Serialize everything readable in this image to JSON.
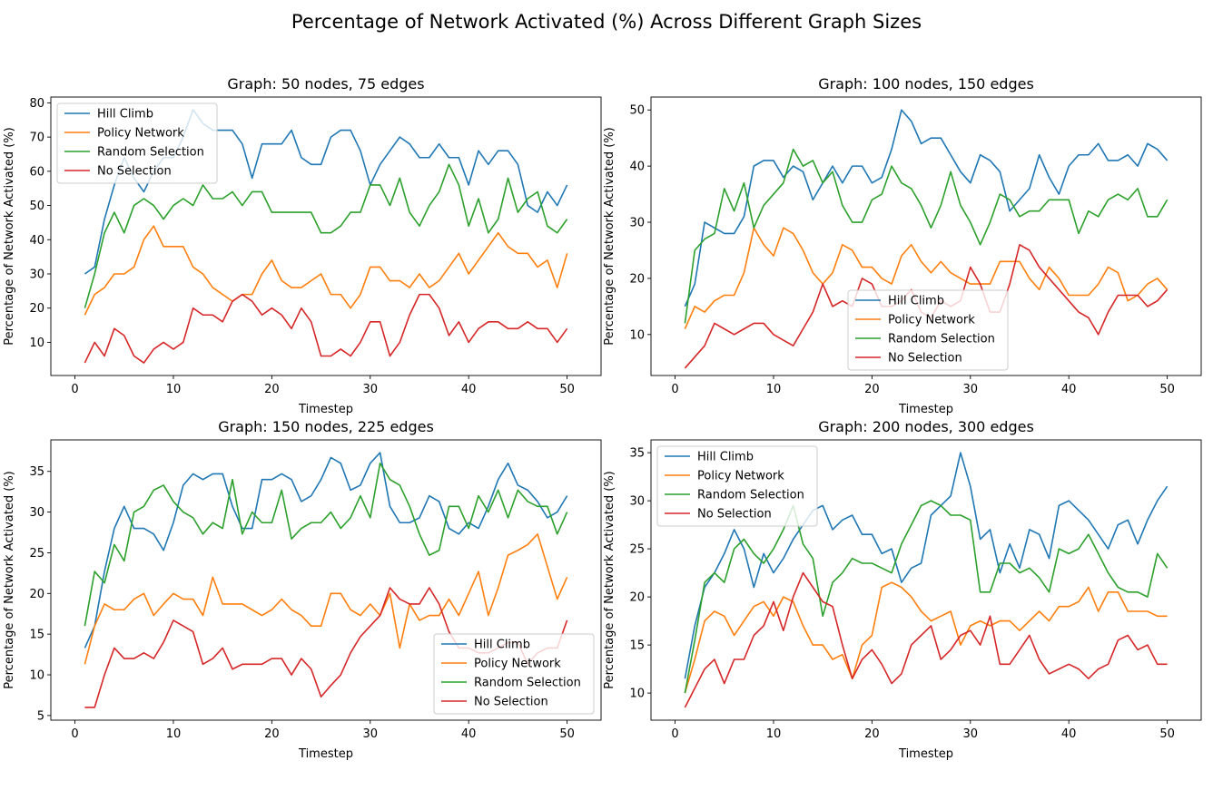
{
  "figure": {
    "title": "Percentage of Network Activated (%) Across Different Graph Sizes"
  },
  "chart_data": [
    {
      "type": "line",
      "title": "Graph: 50 nodes, 75 edges",
      "xlabel": "Timestep",
      "ylabel": "Percentage of Network Activated (%)",
      "xlim": [
        -2.45,
        53.45
      ],
      "ylim": [
        0.3,
        81.7
      ],
      "xticks": [
        0,
        10,
        20,
        30,
        40,
        50
      ],
      "yticks": [
        10,
        20,
        30,
        40,
        50,
        60,
        70,
        80
      ],
      "legend": "upper left",
      "x": [
        1,
        2,
        3,
        4,
        5,
        6,
        7,
        8,
        9,
        10,
        11,
        12,
        13,
        14,
        15,
        16,
        17,
        18,
        19,
        20,
        21,
        22,
        23,
        24,
        25,
        26,
        27,
        28,
        29,
        30,
        31,
        32,
        33,
        34,
        35,
        36,
        37,
        38,
        39,
        40,
        41,
        42,
        43,
        44,
        45,
        46,
        47,
        48,
        49,
        50
      ],
      "series": [
        {
          "name": "Hill Climb",
          "color": "#1f77b4",
          "values": [
            30,
            32,
            46,
            56,
            64,
            58,
            54,
            60,
            64,
            64,
            70,
            78,
            74,
            72,
            72,
            72,
            68,
            58,
            68,
            68,
            68,
            72,
            64,
            62,
            62,
            70,
            72,
            72,
            66,
            56,
            62,
            66,
            70,
            68,
            64,
            64,
            68,
            64,
            64,
            56,
            66,
            62,
            66,
            66,
            62,
            50,
            48,
            54,
            50,
            56
          ]
        },
        {
          "name": "Policy Network",
          "color": "#ff7f0e",
          "values": [
            18,
            24,
            26,
            30,
            30,
            32,
            40,
            44,
            38,
            38,
            38,
            32,
            30,
            26,
            24,
            22,
            24,
            24,
            30,
            34,
            28,
            26,
            26,
            28,
            30,
            24,
            24,
            20,
            24,
            32,
            32,
            28,
            28,
            26,
            30,
            26,
            28,
            32,
            36,
            30,
            34,
            38,
            42,
            38,
            36,
            36,
            32,
            34,
            26,
            36
          ]
        },
        {
          "name": "Random Selection",
          "color": "#2ca02c",
          "values": [
            20,
            30,
            42,
            48,
            42,
            50,
            52,
            50,
            46,
            50,
            52,
            50,
            56,
            52,
            52,
            54,
            50,
            54,
            54,
            48,
            48,
            48,
            48,
            48,
            42,
            42,
            44,
            48,
            48,
            56,
            56,
            50,
            58,
            48,
            44,
            50,
            54,
            62,
            56,
            44,
            52,
            42,
            46,
            58,
            48,
            52,
            54,
            44,
            42,
            46
          ]
        },
        {
          "name": "No Selection",
          "color": "#d62728",
          "values": [
            4,
            10,
            6,
            14,
            12,
            6,
            4,
            8,
            10,
            8,
            10,
            20,
            18,
            18,
            16,
            22,
            24,
            22,
            18,
            20,
            18,
            14,
            20,
            16,
            6,
            6,
            8,
            6,
            10,
            16,
            16,
            6,
            10,
            18,
            24,
            24,
            20,
            12,
            16,
            10,
            14,
            16,
            16,
            14,
            14,
            16,
            14,
            14,
            10,
            14
          ]
        }
      ]
    },
    {
      "type": "line",
      "title": "Graph: 100 nodes, 150 edges",
      "xlabel": "Timestep",
      "ylabel": "Percentage of Network Activated (%)",
      "xlim": [
        -2.45,
        53.45
      ],
      "ylim": [
        2.7,
        52.3
      ],
      "xticks": [
        0,
        10,
        20,
        30,
        40,
        50
      ],
      "yticks": [
        10,
        20,
        30,
        40,
        50
      ],
      "legend": "lower center",
      "x": [
        1,
        2,
        3,
        4,
        5,
        6,
        7,
        8,
        9,
        10,
        11,
        12,
        13,
        14,
        15,
        16,
        17,
        18,
        19,
        20,
        21,
        22,
        23,
        24,
        25,
        26,
        27,
        28,
        29,
        30,
        31,
        32,
        33,
        34,
        35,
        36,
        37,
        38,
        39,
        40,
        41,
        42,
        43,
        44,
        45,
        46,
        47,
        48,
        49,
        50
      ],
      "series": [
        {
          "name": "Hill Climb",
          "color": "#1f77b4",
          "values": [
            15,
            19,
            30,
            29,
            28,
            28,
            31,
            40,
            41,
            41,
            38,
            40,
            39,
            34,
            37,
            40,
            37,
            40,
            40,
            37,
            38,
            43,
            50,
            48,
            44,
            45,
            45,
            42,
            39,
            37,
            42,
            41,
            39,
            32,
            34,
            36,
            42,
            38,
            35,
            40,
            42,
            42,
            44,
            41,
            41,
            42,
            40,
            44,
            43,
            41
          ]
        },
        {
          "name": "Policy Network",
          "color": "#ff7f0e",
          "values": [
            11,
            15,
            14,
            16,
            17,
            17,
            21,
            29,
            26,
            24,
            29,
            28,
            25,
            21,
            19,
            21,
            26,
            25,
            22,
            22,
            20,
            19,
            24,
            26,
            23,
            21,
            23,
            21,
            20,
            19,
            19,
            19,
            23,
            23,
            23,
            20,
            18,
            22,
            20,
            17,
            17,
            17,
            19,
            22,
            21,
            16,
            17,
            19,
            20,
            18
          ]
        },
        {
          "name": "Random Selection",
          "color": "#2ca02c",
          "values": [
            12,
            25,
            27,
            28,
            36,
            32,
            37,
            29,
            33,
            35,
            37,
            43,
            40,
            41,
            37,
            39,
            33,
            30,
            30,
            34,
            35,
            40,
            37,
            36,
            33,
            29,
            33,
            39,
            33,
            30,
            26,
            30,
            35,
            34,
            31,
            32,
            32,
            34,
            34,
            34,
            28,
            32,
            31,
            34,
            35,
            34,
            36,
            31,
            31,
            34
          ]
        },
        {
          "name": "No Selection",
          "color": "#d62728",
          "values": [
            4,
            6,
            8,
            12,
            11,
            10,
            11,
            12,
            12,
            10,
            9,
            8,
            11,
            14,
            19,
            15,
            16,
            15,
            20,
            19,
            15,
            15,
            16,
            18,
            14,
            13,
            16,
            15,
            16,
            22,
            19,
            14,
            14,
            19,
            26,
            25,
            22,
            20,
            18,
            16,
            14,
            13,
            10,
            14,
            17,
            17,
            17,
            15,
            16,
            18
          ]
        }
      ]
    },
    {
      "type": "line",
      "title": "Graph: 150 nodes, 225 edges",
      "xlabel": "Timestep",
      "ylabel": "Percentage of Network Activated (%)",
      "xlim": [
        -2.45,
        53.45
      ],
      "ylim": [
        4.43,
        38.87
      ],
      "xticks": [
        0,
        10,
        20,
        30,
        40,
        50
      ],
      "yticks": [
        5,
        10,
        15,
        20,
        25,
        30,
        35
      ],
      "legend": "lower right",
      "x": [
        1,
        2,
        3,
        4,
        5,
        6,
        7,
        8,
        9,
        10,
        11,
        12,
        13,
        14,
        15,
        16,
        17,
        18,
        19,
        20,
        21,
        22,
        23,
        24,
        25,
        26,
        27,
        28,
        29,
        30,
        31,
        32,
        33,
        34,
        35,
        36,
        37,
        38,
        39,
        40,
        41,
        42,
        43,
        44,
        45,
        46,
        47,
        48,
        49,
        50
      ],
      "series": [
        {
          "name": "Hill Climb",
          "color": "#1f77b4",
          "values": [
            13.3,
            16,
            22.7,
            28,
            30.7,
            28,
            28,
            27.3,
            25.3,
            28.7,
            33.3,
            34.7,
            34,
            34.7,
            34.7,
            30.7,
            28,
            28,
            34,
            34,
            34.7,
            34,
            31.3,
            32,
            34,
            36.7,
            36,
            32.7,
            33.3,
            36,
            37.3,
            30.7,
            28.7,
            28.7,
            29.3,
            32,
            31.3,
            28,
            27.3,
            28.7,
            28,
            30.7,
            34,
            36,
            33.3,
            32.7,
            31.3,
            29.3,
            30,
            32
          ]
        },
        {
          "name": "Policy Network",
          "color": "#ff7f0e",
          "values": [
            11.3,
            16,
            18.7,
            18,
            18,
            19.3,
            20,
            17.3,
            18.7,
            20,
            19.3,
            19.3,
            17.3,
            22,
            18.7,
            18.7,
            18.7,
            18,
            17.3,
            18,
            19.3,
            18,
            17.3,
            16,
            16,
            20,
            20,
            18,
            17.3,
            18.7,
            17.3,
            20,
            13.3,
            18.7,
            16.7,
            17.3,
            17.3,
            19.3,
            17.3,
            20,
            22.7,
            17.3,
            20.7,
            24.7,
            25.3,
            26,
            27.3,
            23.3,
            19.3,
            22
          ]
        },
        {
          "name": "Random Selection",
          "color": "#2ca02c",
          "values": [
            16,
            22.7,
            21.3,
            26,
            24,
            30,
            30.7,
            32.7,
            33.3,
            31.3,
            30,
            29.3,
            27.3,
            28.7,
            28,
            34,
            27.3,
            30,
            28.7,
            28.7,
            32.7,
            26.7,
            28,
            28.7,
            28.7,
            30,
            28,
            29.3,
            32,
            29.3,
            36,
            34,
            33.3,
            30.7,
            27.3,
            24.7,
            25.3,
            30.7,
            30.7,
            28,
            32,
            30,
            32.7,
            29.3,
            32.7,
            31.3,
            30.7,
            30.7,
            27.3,
            30
          ]
        },
        {
          "name": "No Selection",
          "color": "#d62728",
          "values": [
            6,
            6,
            10,
            13.3,
            12,
            12,
            12.7,
            12,
            14,
            16.7,
            16,
            15.3,
            11.3,
            12,
            13.3,
            10.7,
            11.3,
            11.3,
            11.3,
            12,
            12,
            10,
            12,
            10.7,
            7.3,
            8.7,
            10,
            12.7,
            14.7,
            16,
            17.3,
            20.7,
            19.3,
            18.7,
            18.7,
            20.7,
            18.7,
            15.3,
            13.3,
            13.3,
            12.7,
            12.7,
            13.3,
            14,
            14,
            11.3,
            12.7,
            13.3,
            13.3,
            16.7
          ]
        }
      ]
    },
    {
      "type": "line",
      "title": "Graph: 200 nodes, 300 edges",
      "xlabel": "Timestep",
      "ylabel": "Percentage of Network Activated (%)",
      "xlim": [
        -2.45,
        53.45
      ],
      "ylim": [
        7.18,
        36.33
      ],
      "xticks": [
        0,
        10,
        20,
        30,
        40,
        50
      ],
      "yticks": [
        10,
        15,
        20,
        25,
        30,
        35
      ],
      "legend": "upper left",
      "x": [
        1,
        2,
        3,
        4,
        5,
        6,
        7,
        8,
        9,
        10,
        11,
        12,
        13,
        14,
        15,
        16,
        17,
        18,
        19,
        20,
        21,
        22,
        23,
        24,
        25,
        26,
        27,
        28,
        29,
        30,
        31,
        32,
        33,
        34,
        35,
        36,
        37,
        38,
        39,
        40,
        41,
        42,
        43,
        44,
        45,
        46,
        47,
        48,
        49,
        50
      ],
      "series": [
        {
          "name": "Hill Climb",
          "color": "#1f77b4",
          "values": [
            11.5,
            17,
            21,
            22.5,
            24.5,
            27,
            25,
            21,
            24.5,
            22.5,
            24,
            26,
            27.5,
            29,
            29.5,
            27,
            28,
            28.5,
            26.5,
            26.5,
            24.5,
            25,
            21.5,
            23,
            23.5,
            28.5,
            29.5,
            30.5,
            35,
            31.5,
            26,
            27,
            22.5,
            25.5,
            23,
            27,
            26.5,
            24,
            29.5,
            30,
            29,
            28,
            26.5,
            25,
            27.5,
            28,
            25.5,
            28,
            30,
            31.5
          ]
        },
        {
          "name": "Policy Network",
          "color": "#ff7f0e",
          "values": [
            10,
            13.5,
            17.5,
            18.5,
            18,
            16,
            17.5,
            19,
            19.5,
            18,
            20,
            19.5,
            17,
            15,
            15,
            13.5,
            14,
            11.5,
            15,
            16,
            21,
            21.5,
            21,
            20,
            18.5,
            17.5,
            18,
            18.5,
            15,
            17,
            17.5,
            17,
            17.5,
            17.5,
            16.5,
            17.5,
            18.5,
            17.5,
            19,
            19,
            19.5,
            21,
            18.5,
            20.5,
            20.5,
            18.5,
            18.5,
            18.5,
            18,
            18
          ]
        },
        {
          "name": "Random Selection",
          "color": "#2ca02c",
          "values": [
            10,
            15.5,
            21.5,
            22.5,
            21.5,
            25,
            26,
            24.5,
            23.5,
            25,
            27,
            29.5,
            25.5,
            24,
            18,
            21.5,
            22.5,
            24,
            23.5,
            23.5,
            23,
            22.5,
            25.5,
            27.5,
            29.5,
            30,
            29.5,
            28.5,
            28.5,
            28,
            20.5,
            20.5,
            23.5,
            23.5,
            22.5,
            23,
            22,
            20.5,
            25,
            24.5,
            25,
            26.5,
            24.5,
            22.5,
            21,
            20.5,
            20.5,
            20,
            24.5,
            23
          ]
        },
        {
          "name": "No Selection",
          "color": "#d62728",
          "values": [
            8.5,
            10.5,
            12.5,
            13.5,
            11,
            13.5,
            13.5,
            16,
            17,
            19.5,
            16.5,
            20,
            22.5,
            21,
            19.5,
            19,
            15,
            11.5,
            13.5,
            14.5,
            13,
            11,
            12,
            15,
            16,
            17,
            13.5,
            14.5,
            16,
            16.5,
            15,
            18,
            13,
            13,
            14.5,
            16,
            13.5,
            12,
            12.5,
            13,
            12.5,
            11.5,
            12.5,
            13,
            15.5,
            16,
            14.5,
            15,
            13,
            13
          ]
        }
      ]
    }
  ]
}
